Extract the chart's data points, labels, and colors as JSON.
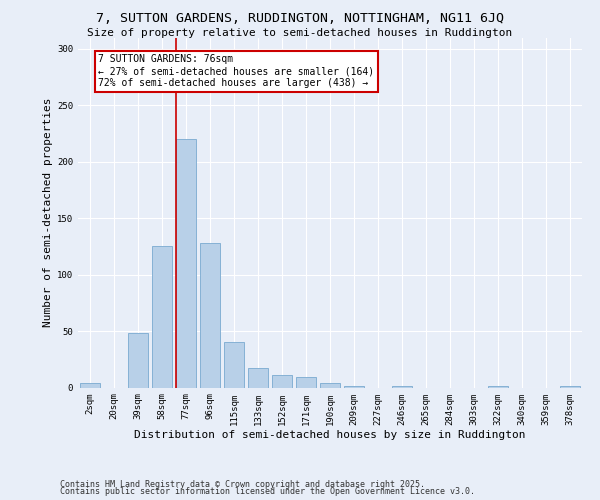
{
  "title_line1": "7, SUTTON GARDENS, RUDDINGTON, NOTTINGHAM, NG11 6JQ",
  "title_line2": "Size of property relative to semi-detached houses in Ruddington",
  "xlabel": "Distribution of semi-detached houses by size in Ruddington",
  "ylabel": "Number of semi-detached properties",
  "categories": [
    "2sqm",
    "20sqm",
    "39sqm",
    "58sqm",
    "77sqm",
    "96sqm",
    "115sqm",
    "133sqm",
    "152sqm",
    "171sqm",
    "190sqm",
    "209sqm",
    "227sqm",
    "246sqm",
    "265sqm",
    "284sqm",
    "303sqm",
    "322sqm",
    "340sqm",
    "359sqm",
    "378sqm"
  ],
  "values": [
    4,
    0,
    48,
    125,
    220,
    128,
    40,
    17,
    11,
    9,
    4,
    1,
    0,
    1,
    0,
    0,
    0,
    1,
    0,
    0,
    1
  ],
  "bar_color": "#b8d0e8",
  "bar_edge_color": "#7aaad0",
  "red_line_index": 4,
  "annotation_text": "7 SUTTON GARDENS: 76sqm\n← 27% of semi-detached houses are smaller (164)\n72% of semi-detached houses are larger (438) →",
  "annotation_box_color": "#ffffff",
  "annotation_box_edge_color": "#cc0000",
  "red_line_color": "#cc0000",
  "ylim": [
    0,
    310
  ],
  "yticks": [
    0,
    50,
    100,
    150,
    200,
    250,
    300
  ],
  "background_color": "#e8eef8",
  "grid_color": "#ffffff",
  "footer_line1": "Contains HM Land Registry data © Crown copyright and database right 2025.",
  "footer_line2": "Contains public sector information licensed under the Open Government Licence v3.0.",
  "title_fontsize": 9.5,
  "subtitle_fontsize": 8,
  "axis_label_fontsize": 8,
  "tick_fontsize": 6.5,
  "annotation_fontsize": 7,
  "footer_fontsize": 6
}
